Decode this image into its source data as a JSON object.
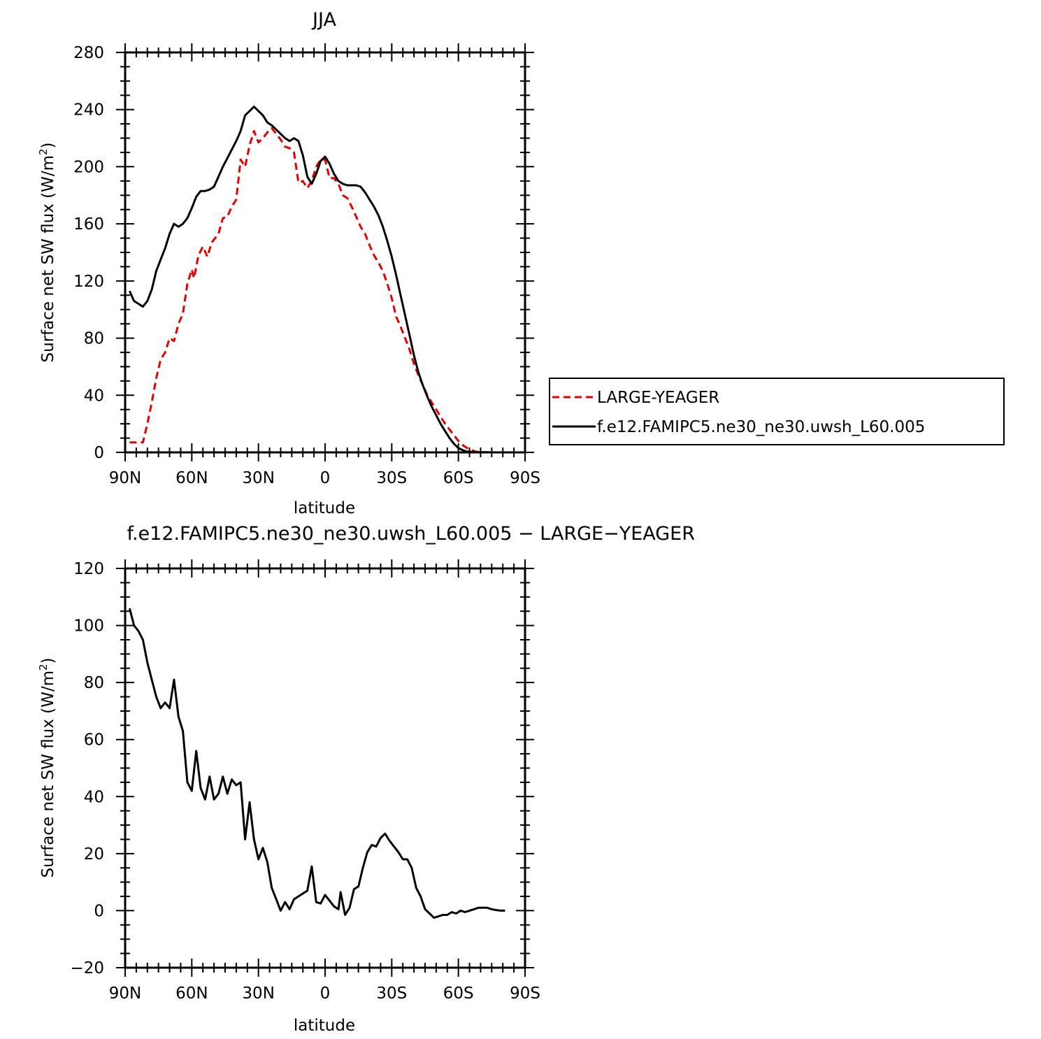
{
  "chart_data": [
    {
      "type": "line",
      "title": "JJA",
      "xlabel": "latitude",
      "ylabel": "Surface net SW flux (W/m²)",
      "ylabel_main": "Surface net SW flux (W/m",
      "ylabel_sup": "2",
      "ylabel_close": ")",
      "xlim": [
        -90,
        90
      ],
      "ylim": [
        0,
        280
      ],
      "xticks": [
        {
          "v": -90,
          "label": "90N"
        },
        {
          "v": -60,
          "label": "60N"
        },
        {
          "v": -30,
          "label": "30N"
        },
        {
          "v": 0,
          "label": "0"
        },
        {
          "v": 30,
          "label": "30S"
        },
        {
          "v": 60,
          "label": "60S"
        },
        {
          "v": 90,
          "label": "90S"
        }
      ],
      "yticks": [
        0,
        40,
        80,
        120,
        160,
        200,
        240,
        280
      ],
      "legend_position": "right",
      "series": [
        {
          "name": "LARGE-YEAGER",
          "color": "#e00000",
          "dash": "dashed",
          "points": [
            [
              -88,
              7
            ],
            [
              -85,
              7
            ],
            [
              -82,
              7
            ],
            [
              -80,
              20
            ],
            [
              -78,
              35
            ],
            [
              -76,
              52
            ],
            [
              -74,
              65
            ],
            [
              -72,
              70
            ],
            [
              -70,
              80
            ],
            [
              -68,
              78
            ],
            [
              -66,
              90
            ],
            [
              -64,
              97
            ],
            [
              -62,
              118
            ],
            [
              -60,
              128
            ],
            [
              -59,
              122
            ],
            [
              -57,
              138
            ],
            [
              -55,
              144
            ],
            [
              -53,
              137
            ],
            [
              -51,
              147
            ],
            [
              -48,
              153
            ],
            [
              -46,
              164
            ],
            [
              -44,
              165
            ],
            [
              -42,
              172
            ],
            [
              -40,
              177
            ],
            [
              -38,
              205
            ],
            [
              -36,
              200
            ],
            [
              -34,
              215
            ],
            [
              -32,
              225
            ],
            [
              -30,
              217
            ],
            [
              -28,
              220
            ],
            [
              -26,
              224
            ],
            [
              -24,
              227
            ],
            [
              -22,
              223
            ],
            [
              -20,
              219
            ],
            [
              -18,
              214
            ],
            [
              -16,
              213
            ],
            [
              -14,
              210
            ],
            [
              -12,
              189
            ],
            [
              -10,
              190
            ],
            [
              -8,
              185
            ],
            [
              -6,
              190
            ],
            [
              -4,
              200
            ],
            [
              -2,
              205
            ],
            [
              0,
              205
            ],
            [
              2,
              192
            ],
            [
              4,
              192
            ],
            [
              6,
              188
            ],
            [
              8,
              180
            ],
            [
              10,
              178
            ],
            [
              12,
              172
            ],
            [
              14,
              165
            ],
            [
              16,
              158
            ],
            [
              18,
              153
            ],
            [
              20,
              145
            ],
            [
              22,
              138
            ],
            [
              24,
              133
            ],
            [
              26,
              127
            ],
            [
              28,
              118
            ],
            [
              30,
              108
            ],
            [
              32,
              95
            ],
            [
              34,
              88
            ],
            [
              36,
              80
            ],
            [
              38,
              72
            ],
            [
              40,
              62
            ],
            [
              42,
              54
            ],
            [
              44,
              47
            ],
            [
              46,
              40
            ],
            [
              48,
              35
            ],
            [
              50,
              30
            ],
            [
              52,
              25
            ],
            [
              54,
              20
            ],
            [
              56,
              16
            ],
            [
              58,
              12
            ],
            [
              60,
              8
            ],
            [
              62,
              5
            ],
            [
              64,
              3
            ],
            [
              66,
              1.5
            ],
            [
              68,
              0.5
            ],
            [
              70,
              0.2
            ],
            [
              75,
              0
            ],
            [
              80,
              0
            ]
          ]
        },
        {
          "name": "f.e12.FAMIPC5.ne30_ne30.uwsh_L60.005",
          "color": "#000000",
          "dash": "solid",
          "points": [
            [
              -88,
              113
            ],
            [
              -86,
              106
            ],
            [
              -84,
              104
            ],
            [
              -82,
              102
            ],
            [
              -80,
              106
            ],
            [
              -78,
              114
            ],
            [
              -76,
              127
            ],
            [
              -74,
              135
            ],
            [
              -72,
              143
            ],
            [
              -70,
              153
            ],
            [
              -68,
              160
            ],
            [
              -66,
              158
            ],
            [
              -64,
              160
            ],
            [
              -62,
              164
            ],
            [
              -60,
              171
            ],
            [
              -58,
              179
            ],
            [
              -56,
              183
            ],
            [
              -54,
              183
            ],
            [
              -52,
              184
            ],
            [
              -50,
              186
            ],
            [
              -48,
              193
            ],
            [
              -46,
              200
            ],
            [
              -44,
              206
            ],
            [
              -42,
              212
            ],
            [
              -40,
              218
            ],
            [
              -38,
              225
            ],
            [
              -36,
              236
            ],
            [
              -34,
              239
            ],
            [
              -32,
              242
            ],
            [
              -30,
              239
            ],
            [
              -28,
              236
            ],
            [
              -26,
              231
            ],
            [
              -24,
              229
            ],
            [
              -22,
              226
            ],
            [
              -20,
              223
            ],
            [
              -18,
              220
            ],
            [
              -16,
              218
            ],
            [
              -14,
              220
            ],
            [
              -12,
              218
            ],
            [
              -10,
              208
            ],
            [
              -8,
              193
            ],
            [
              -6,
              188
            ],
            [
              -4,
              195
            ],
            [
              -2,
              204
            ],
            [
              0,
              207
            ],
            [
              2,
              202
            ],
            [
              4,
              195
            ],
            [
              6,
              190
            ],
            [
              8,
              188
            ],
            [
              10,
              187
            ],
            [
              12,
              187
            ],
            [
              14,
              187
            ],
            [
              16,
              186
            ],
            [
              18,
              182
            ],
            [
              20,
              177
            ],
            [
              22,
              172
            ],
            [
              24,
              166
            ],
            [
              26,
              158
            ],
            [
              28,
              148
            ],
            [
              30,
              137
            ],
            [
              32,
              124
            ],
            [
              34,
              110
            ],
            [
              36,
              96
            ],
            [
              38,
              82
            ],
            [
              40,
              68
            ],
            [
              42,
              56
            ],
            [
              44,
              47
            ],
            [
              46,
              39
            ],
            [
              48,
              32
            ],
            [
              50,
              26
            ],
            [
              52,
              20
            ],
            [
              54,
              15
            ],
            [
              56,
              10
            ],
            [
              58,
              6
            ],
            [
              60,
              3
            ],
            [
              62,
              1.5
            ],
            [
              64,
              0.5
            ],
            [
              68,
              0.2
            ],
            [
              75,
              0
            ],
            [
              80,
              0
            ]
          ]
        }
      ]
    },
    {
      "type": "line",
      "title": "f.e12.FAMIPC5.ne30_ne30.uwsh_L60.005 − LARGE−YEAGER",
      "xlabel": "latitude",
      "ylabel": "Surface net SW flux (W/m²)",
      "ylabel_main": "Surface net SW flux (W/m",
      "ylabel_sup": "2",
      "ylabel_close": ")",
      "xlim": [
        -90,
        90
      ],
      "ylim": [
        -20,
        120
      ],
      "xticks": [
        {
          "v": -90,
          "label": "90N"
        },
        {
          "v": -60,
          "label": "60N"
        },
        {
          "v": -30,
          "label": "30N"
        },
        {
          "v": 0,
          "label": "0"
        },
        {
          "v": 30,
          "label": "30S"
        },
        {
          "v": 60,
          "label": "60S"
        },
        {
          "v": 90,
          "label": "90S"
        }
      ],
      "yticks": [
        -20,
        0,
        20,
        40,
        60,
        80,
        100,
        120
      ],
      "series": [
        {
          "color": "#000000",
          "dash": "solid",
          "points": [
            [
              -88,
              106
            ],
            [
              -86,
              100
            ],
            [
              -84,
              98
            ],
            [
              -82,
              95
            ],
            [
              -80,
              87
            ],
            [
              -78,
              81
            ],
            [
              -76,
              75
            ],
            [
              -74,
              71
            ],
            [
              -72,
              73
            ],
            [
              -70,
              71
            ],
            [
              -68,
              81
            ],
            [
              -66,
              68
            ],
            [
              -64,
              63
            ],
            [
              -62,
              45
            ],
            [
              -60,
              42
            ],
            [
              -58,
              56
            ],
            [
              -56,
              43
            ],
            [
              -54,
              39
            ],
            [
              -52,
              47
            ],
            [
              -50,
              39
            ],
            [
              -48,
              41
            ],
            [
              -46,
              47
            ],
            [
              -44,
              41
            ],
            [
              -42,
              46
            ],
            [
              -40,
              44
            ],
            [
              -38,
              45
            ],
            [
              -36,
              25
            ],
            [
              -34,
              38
            ],
            [
              -32,
              25
            ],
            [
              -30,
              18
            ],
            [
              -28,
              22
            ],
            [
              -26,
              17
            ],
            [
              -24,
              8
            ],
            [
              -22,
              4
            ],
            [
              -20,
              0
            ],
            [
              -18,
              3
            ],
            [
              -16,
              0.5
            ],
            [
              -14,
              4
            ],
            [
              -12,
              5
            ],
            [
              -10,
              6
            ],
            [
              -8,
              7
            ],
            [
              -6,
              15.5
            ],
            [
              -4,
              3
            ],
            [
              -2,
              2.5
            ],
            [
              0,
              5.5
            ],
            [
              2,
              3.5
            ],
            [
              4,
              1.5
            ],
            [
              6,
              0.5
            ],
            [
              7,
              6.5
            ],
            [
              9,
              -1.5
            ],
            [
              11,
              1
            ],
            [
              13,
              7.5
            ],
            [
              15,
              8.5
            ],
            [
              17,
              15
            ],
            [
              19,
              20.5
            ],
            [
              21,
              23
            ],
            [
              23,
              22.5
            ],
            [
              25,
              25.5
            ],
            [
              27,
              27
            ],
            [
              29,
              24.5
            ],
            [
              31,
              22.5
            ],
            [
              33,
              20.5
            ],
            [
              35,
              18
            ],
            [
              37,
              18
            ],
            [
              39,
              15
            ],
            [
              41,
              8
            ],
            [
              43,
              5
            ],
            [
              45,
              0.5
            ],
            [
              47,
              -1
            ],
            [
              49,
              -2.5
            ],
            [
              51,
              -2
            ],
            [
              53,
              -1.5
            ],
            [
              55,
              -1.5
            ],
            [
              57,
              -0.5
            ],
            [
              59,
              -1
            ],
            [
              61,
              0
            ],
            [
              63,
              -0.5
            ],
            [
              65,
              0
            ],
            [
              67,
              0.5
            ],
            [
              69,
              1
            ],
            [
              71,
              1
            ],
            [
              73,
              1
            ],
            [
              75,
              0.5
            ],
            [
              77,
              0.2
            ],
            [
              79,
              0
            ],
            [
              81,
              0
            ]
          ]
        }
      ]
    }
  ]
}
